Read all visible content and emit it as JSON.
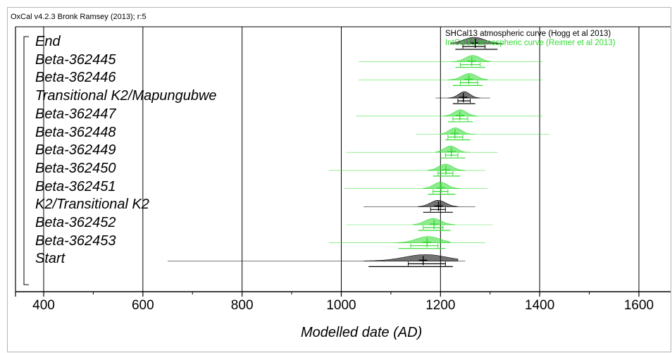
{
  "header": "OxCal v4.2.3 Bronk Ramsey (2013); r:5",
  "legend": [
    {
      "label": "SHCal13 atmospheric curve (Hogg et al 2013)",
      "color": "#000000"
    },
    {
      "label": "IntCal13 atmospheric curve (Reimer et al 2013)",
      "color": "#32dc32"
    }
  ],
  "chart_data": {
    "type": "range-plot",
    "xlabel": "Modelled date (AD)",
    "xlim": [
      350,
      1670
    ],
    "x_ticks": [
      400,
      600,
      800,
      1000,
      1200,
      1400,
      1600
    ],
    "grid": true,
    "legend_position": "top-right",
    "rows": [
      {
        "label": "End",
        "curve": "SHCal13",
        "peak": 1268,
        "likelihood": [
          1245,
          1325
        ],
        "r68": [
          1245,
          1290
        ],
        "r95": [
          1230,
          1315
        ],
        "mean": 1270
      },
      {
        "label": "Beta-362445",
        "curve": "IntCal13",
        "peak": 1265,
        "likelihood": [
          1035,
          1405
        ],
        "r68": [
          1240,
          1280
        ],
        "r95": [
          1230,
          1290
        ],
        "mean": 1263
      },
      {
        "label": "Beta-362446",
        "curve": "IntCal13",
        "peak": 1258,
        "likelihood": [
          1035,
          1405
        ],
        "r68": [
          1240,
          1275
        ],
        "r95": [
          1225,
          1285
        ],
        "mean": 1257
      },
      {
        "label": "Transitional K2/Mapungubwe",
        "curve": "SHCal13",
        "peak": 1248,
        "likelihood": [
          1190,
          1300
        ],
        "r68": [
          1235,
          1260
        ],
        "r95": [
          1225,
          1270
        ],
        "mean": 1246
      },
      {
        "label": "Beta-362447",
        "curve": "IntCal13",
        "peak": 1240,
        "likelihood": [
          1030,
          1405
        ],
        "r68": [
          1225,
          1255
        ],
        "r95": [
          1215,
          1265
        ],
        "mean": 1239
      },
      {
        "label": "Beta-362448",
        "curve": "IntCal13",
        "peak": 1230,
        "likelihood": [
          1150,
          1420
        ],
        "r68": [
          1215,
          1245
        ],
        "r95": [
          1210,
          1260
        ],
        "mean": 1229
      },
      {
        "label": "Beta-362449",
        "curve": "IntCal13",
        "peak": 1220,
        "likelihood": [
          1010,
          1315
        ],
        "r68": [
          1210,
          1235
        ],
        "r95": [
          1200,
          1250
        ],
        "mean": 1222
      },
      {
        "label": "Beta-362450",
        "curve": "IntCal13",
        "peak": 1210,
        "likelihood": [
          975,
          1290
        ],
        "r68": [
          1195,
          1225
        ],
        "r95": [
          1185,
          1240
        ],
        "mean": 1211
      },
      {
        "label": "Beta-362451",
        "curve": "IntCal13",
        "peak": 1200,
        "likelihood": [
          1005,
          1295
        ],
        "r68": [
          1185,
          1215
        ],
        "r95": [
          1175,
          1230
        ],
        "mean": 1201
      },
      {
        "label": "K2/Transitional K2",
        "curve": "SHCal13",
        "peak": 1195,
        "likelihood": [
          1045,
          1270
        ],
        "r68": [
          1180,
          1210
        ],
        "r95": [
          1165,
          1225
        ],
        "mean": 1196
      },
      {
        "label": "Beta-362452",
        "curve": "IntCal13",
        "peak": 1185,
        "likelihood": [
          1010,
          1305
        ],
        "r68": [
          1165,
          1205
        ],
        "r95": [
          1155,
          1220
        ],
        "mean": 1187
      },
      {
        "label": "Beta-362453",
        "curve": "IntCal13",
        "peak": 1175,
        "likelihood": [
          975,
          1290
        ],
        "r68": [
          1140,
          1195
        ],
        "r95": [
          1115,
          1210
        ],
        "mean": 1173
      },
      {
        "label": "Start",
        "curve": "SHCal13",
        "peak": 1170,
        "likelihood": [
          650,
          1250
        ],
        "r68": [
          1135,
          1210
        ],
        "r95": [
          1055,
          1225
        ],
        "mean": 1165
      }
    ]
  }
}
